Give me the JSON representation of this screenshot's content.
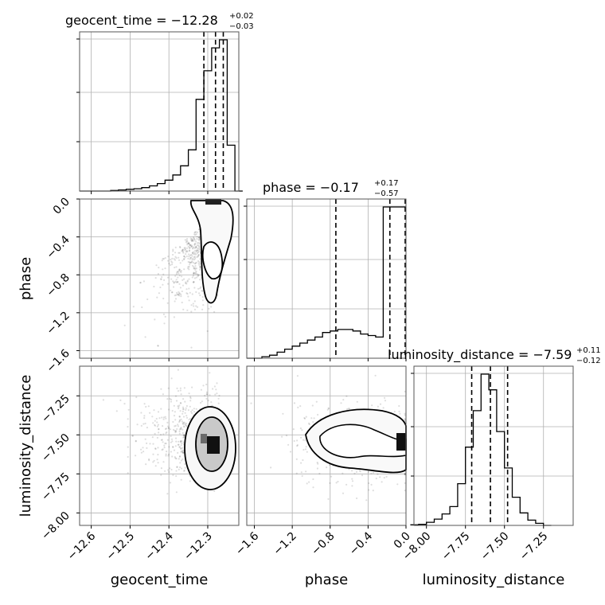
{
  "chart_data": {
    "type": "corner",
    "parameters": [
      "geocent_time",
      "phase",
      "luminosity_distance"
    ],
    "titles": [
      {
        "text": "geocent_time = −12.28",
        "plus": "+0.02",
        "minus": "−0.03"
      },
      {
        "text": "phase = −0.17",
        "plus": "+0.17",
        "minus": "−0.57"
      },
      {
        "text": "luminosity_distance = −7.59",
        "plus": "+0.11",
        "minus": "−0.12"
      }
    ],
    "axis_labels": {
      "x": [
        "geocent_time",
        "phase",
        "luminosity_distance"
      ],
      "y": [
        "phase",
        "luminosity_distance"
      ]
    },
    "ranges": [
      [
        -12.63,
        -12.22
      ],
      [
        -1.68,
        0.0
      ],
      [
        -8.08,
        -7.06
      ]
    ],
    "ticks": [
      {
        "values": [
          -12.6,
          -12.5,
          -12.4,
          -12.3
        ],
        "labels": [
          "−12.6",
          "−12.5",
          "−12.4",
          "−12.3"
        ]
      },
      {
        "values": [
          -1.6,
          -1.2,
          -0.8,
          -0.4,
          0.0
        ],
        "labels": [
          "−1.6",
          "−1.2",
          "−0.8",
          "−0.4",
          "0.0"
        ]
      },
      {
        "values": [
          -8.0,
          -7.75,
          -7.5,
          -7.25
        ],
        "labels": [
          "−8.00",
          "−7.75",
          "−7.50",
          "−7.25"
        ]
      }
    ],
    "quantiles": [
      [
        -12.31,
        -12.28,
        -12.26
      ],
      [
        -0.74,
        -0.17,
        0.0
      ],
      [
        -7.71,
        -7.59,
        -7.48
      ]
    ],
    "histograms": [
      {
        "edges": [
          -12.63,
          -12.61,
          -12.59,
          -12.57,
          -12.55,
          -12.53,
          -12.51,
          -12.49,
          -12.47,
          -12.45,
          -12.43,
          -12.41,
          -12.39,
          -12.37,
          -12.35,
          -12.33,
          -12.31,
          -12.29,
          -12.27,
          -12.25,
          -12.23,
          -12.21
        ],
        "counts": [
          0,
          0,
          0,
          0,
          0.5,
          1,
          1.5,
          2,
          3,
          4.5,
          6.5,
          9.5,
          14,
          22,
          36,
          80,
          105,
          125,
          132,
          40,
          0
        ]
      },
      {
        "edges": [
          -1.68,
          -1.6,
          -1.52,
          -1.44,
          -1.36,
          -1.28,
          -1.2,
          -1.12,
          -1.04,
          -0.96,
          -0.88,
          -0.8,
          -0.72,
          -0.64,
          -0.56,
          -0.48,
          -0.4,
          -0.32,
          -0.24,
          -0.16,
          -0.08,
          0.0
        ],
        "counts": [
          0,
          0,
          1,
          2,
          4,
          6,
          8,
          10,
          12,
          14,
          17,
          18,
          19,
          19,
          18,
          16,
          15,
          14,
          100,
          100,
          100
        ]
      },
      {
        "edges": [
          -8.1,
          -8.05,
          -8.0,
          -7.95,
          -7.9,
          -7.85,
          -7.8,
          -7.75,
          -7.7,
          -7.65,
          -7.6,
          -7.55,
          -7.5,
          -7.45,
          -7.4,
          -7.35,
          -7.3,
          -7.25,
          -7.2
        ],
        "counts": [
          0.5,
          1,
          3,
          6,
          11,
          18,
          40,
          75,
          110,
          145,
          130,
          90,
          55,
          27,
          12,
          5,
          2,
          0
        ]
      }
    ],
    "grid": true,
    "colors": {
      "line": "#000000",
      "grid": "#b0b0b0",
      "scatter": "#000000",
      "density_dark": "#000000"
    }
  }
}
